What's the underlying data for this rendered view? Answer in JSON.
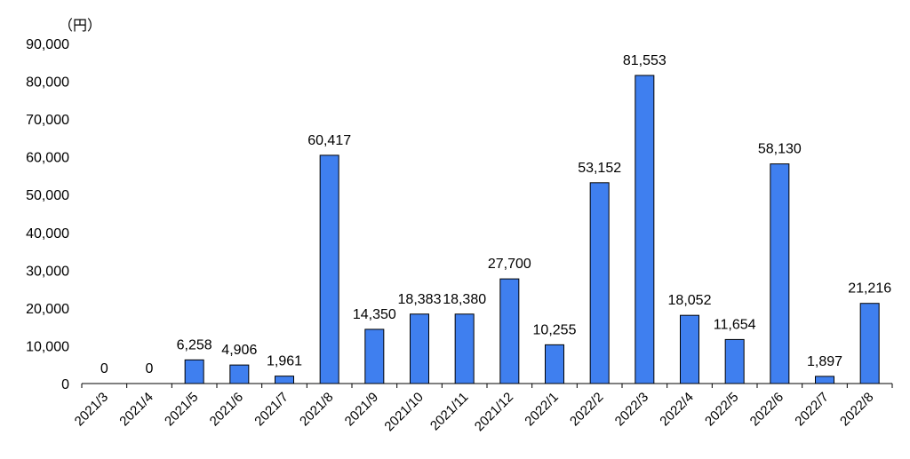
{
  "chart_data": {
    "type": "bar",
    "unit_label": "（円）",
    "categories": [
      "2021/3",
      "2021/4",
      "2021/5",
      "2021/6",
      "2021/7",
      "2021/8",
      "2021/9",
      "2021/10",
      "2021/11",
      "2021/12",
      "2022/1",
      "2022/2",
      "2022/3",
      "2022/4",
      "2022/5",
      "2022/6",
      "2022/7",
      "2022/8"
    ],
    "values": [
      0,
      0,
      6258,
      4906,
      1961,
      60417,
      14350,
      18383,
      18380,
      27700,
      10255,
      53152,
      81553,
      18052,
      11654,
      58130,
      1897,
      21216
    ],
    "value_labels": [
      "0",
      "0",
      "6,258",
      "4,906",
      "1,961",
      "60,417",
      "14,350",
      "18,383",
      "18,380",
      "27,700",
      "10,255",
      "53,152",
      "81,553",
      "18,052",
      "11,654",
      "58,130",
      "1,897",
      "21,216"
    ],
    "ylim": [
      0,
      90000
    ],
    "yticks": [
      0,
      10000,
      20000,
      30000,
      40000,
      50000,
      60000,
      70000,
      80000,
      90000
    ],
    "ytick_labels": [
      "0",
      "10,000",
      "20,000",
      "30,000",
      "40,000",
      "50,000",
      "60,000",
      "70,000",
      "80,000",
      "90,000"
    ],
    "bar_color": "#3f7fef",
    "bar_edge_color": "#000000",
    "grid": false,
    "legend": "none"
  }
}
